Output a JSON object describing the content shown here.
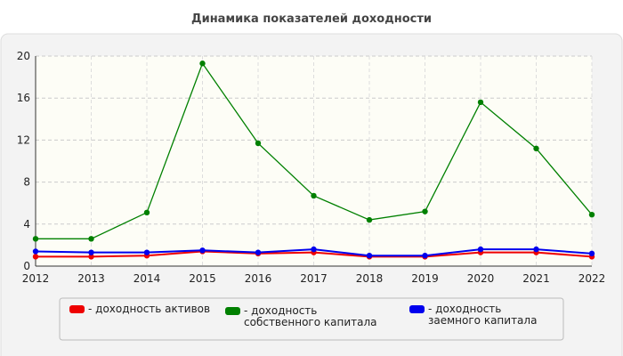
{
  "chart_data": {
    "type": "line",
    "title": "Динамика показателей доходности",
    "categories": [
      "2012",
      "2013",
      "2014",
      "2015",
      "2016",
      "2017",
      "2018",
      "2019",
      "2020",
      "2021",
      "2022"
    ],
    "series": [
      {
        "name": "- доходность активов",
        "color": "#ee0000",
        "values": [
          0.9,
          0.9,
          1.0,
          1.4,
          1.2,
          1.3,
          0.9,
          0.9,
          1.3,
          1.3,
          0.9
        ]
      },
      {
        "name": "- доходность собственного капитала",
        "color": "#008000",
        "values": [
          2.6,
          2.6,
          5.1,
          19.3,
          11.7,
          6.7,
          4.4,
          5.2,
          15.6,
          11.2,
          4.9
        ]
      },
      {
        "name": "- доходность заемного капитала",
        "color": "#0000ee",
        "values": [
          1.4,
          1.3,
          1.3,
          1.5,
          1.3,
          1.6,
          1.0,
          1.0,
          1.6,
          1.6,
          1.2
        ]
      }
    ],
    "ylim": [
      0,
      20
    ],
    "yticks": [
      0,
      4,
      8,
      12,
      16,
      20
    ],
    "grid": true
  }
}
